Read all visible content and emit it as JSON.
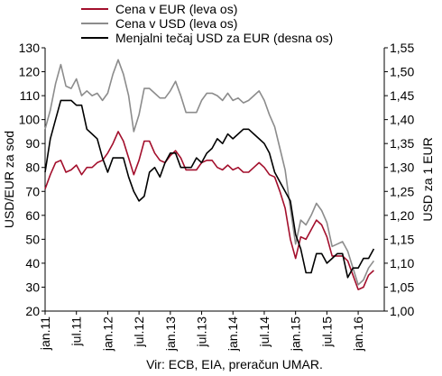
{
  "chart_data": {
    "type": "line",
    "source": "Vir: ECB, EIA, preračun UMAR.",
    "ylabel_left": "USD/EUR za sod",
    "ylabel_right": "USD za 1 EUR",
    "ylim_left": [
      20,
      130
    ],
    "yticks_left": [
      "20",
      "30",
      "40",
      "50",
      "60",
      "70",
      "80",
      "90",
      "100",
      "110",
      "120",
      "130"
    ],
    "ylim_right": [
      1.0,
      1.55
    ],
    "yticks_right": [
      "1,00",
      "1,05",
      "1,10",
      "1,15",
      "1,20",
      "1,25",
      "1,30",
      "1,35",
      "1,40",
      "1,45",
      "1,50",
      "1,55"
    ],
    "xlim": [
      "2011-01",
      "2016-06"
    ],
    "xticks": [
      "jan.11",
      "jul.11",
      "jan.12",
      "jul.12",
      "jan.13",
      "jul.13",
      "jan.14",
      "jul.14",
      "jan.15",
      "jul.15",
      "jan.16"
    ],
    "grid": false,
    "legend_position": "top",
    "colors": {
      "eur": "#a30f2c",
      "usd": "#8c8c8c",
      "fx": "#000000"
    },
    "series": [
      {
        "name": "Cena v EUR (leva os)",
        "axis": "left",
        "color": "#a30f2c",
        "points": [
          [
            "2011-01",
            71
          ],
          [
            "2011-02",
            77
          ],
          [
            "2011-03",
            82
          ],
          [
            "2011-04",
            83
          ],
          [
            "2011-05",
            78
          ],
          [
            "2011-06",
            79
          ],
          [
            "2011-07",
            81
          ],
          [
            "2011-08",
            77
          ],
          [
            "2011-09",
            80
          ],
          [
            "2011-10",
            80
          ],
          [
            "2011-11",
            82
          ],
          [
            "2011-12",
            83
          ],
          [
            "2012-01",
            86
          ],
          [
            "2012-02",
            90
          ],
          [
            "2012-03",
            95
          ],
          [
            "2012-04",
            91
          ],
          [
            "2012-05",
            84
          ],
          [
            "2012-06",
            77
          ],
          [
            "2012-07",
            83
          ],
          [
            "2012-08",
            91
          ],
          [
            "2012-09",
            91
          ],
          [
            "2012-10",
            86
          ],
          [
            "2012-11",
            83
          ],
          [
            "2012-12",
            82
          ],
          [
            "2013-01",
            85
          ],
          [
            "2013-02",
            87
          ],
          [
            "2013-03",
            84
          ],
          [
            "2013-04",
            79
          ],
          [
            "2013-05",
            79
          ],
          [
            "2013-06",
            79
          ],
          [
            "2013-07",
            82
          ],
          [
            "2013-08",
            83
          ],
          [
            "2013-09",
            83
          ],
          [
            "2013-10",
            80
          ],
          [
            "2013-11",
            79
          ],
          [
            "2013-12",
            81
          ],
          [
            "2014-01",
            79
          ],
          [
            "2014-02",
            80
          ],
          [
            "2014-03",
            78
          ],
          [
            "2014-04",
            78
          ],
          [
            "2014-05",
            80
          ],
          [
            "2014-06",
            82
          ],
          [
            "2014-07",
            80
          ],
          [
            "2014-08",
            77
          ],
          [
            "2014-09",
            76
          ],
          [
            "2014-10",
            70
          ],
          [
            "2014-11",
            63
          ],
          [
            "2014-12",
            50
          ],
          [
            "2015-01",
            42
          ],
          [
            "2015-02",
            51
          ],
          [
            "2015-03",
            50
          ],
          [
            "2015-04",
            54
          ],
          [
            "2015-05",
            58
          ],
          [
            "2015-06",
            56
          ],
          [
            "2015-07",
            51
          ],
          [
            "2015-08",
            43
          ],
          [
            "2015-09",
            43
          ],
          [
            "2015-10",
            43
          ],
          [
            "2015-11",
            41
          ],
          [
            "2015-12",
            35
          ],
          [
            "2016-01",
            29
          ],
          [
            "2016-02",
            30
          ],
          [
            "2016-03",
            35
          ],
          [
            "2016-04",
            37
          ]
        ]
      },
      {
        "name": "Cena v USD (leva os)",
        "axis": "left",
        "color": "#8c8c8c",
        "points": [
          [
            "2011-01",
            96
          ],
          [
            "2011-02",
            104
          ],
          [
            "2011-03",
            115
          ],
          [
            "2011-04",
            123
          ],
          [
            "2011-05",
            114
          ],
          [
            "2011-06",
            113
          ],
          [
            "2011-07",
            117
          ],
          [
            "2011-08",
            110
          ],
          [
            "2011-09",
            112
          ],
          [
            "2011-10",
            110
          ],
          [
            "2011-11",
            111
          ],
          [
            "2011-12",
            108
          ],
          [
            "2012-01",
            111
          ],
          [
            "2012-02",
            119
          ],
          [
            "2012-03",
            125
          ],
          [
            "2012-04",
            119
          ],
          [
            "2012-05",
            110
          ],
          [
            "2012-06",
            95
          ],
          [
            "2012-07",
            102
          ],
          [
            "2012-08",
            113
          ],
          [
            "2012-09",
            113
          ],
          [
            "2012-10",
            111
          ],
          [
            "2012-11",
            109
          ],
          [
            "2012-12",
            109
          ],
          [
            "2013-01",
            112
          ],
          [
            "2013-02",
            116
          ],
          [
            "2013-03",
            110
          ],
          [
            "2013-04",
            103
          ],
          [
            "2013-05",
            103
          ],
          [
            "2013-06",
            103
          ],
          [
            "2013-07",
            108
          ],
          [
            "2013-08",
            111
          ],
          [
            "2013-09",
            111
          ],
          [
            "2013-10",
            110
          ],
          [
            "2013-11",
            108
          ],
          [
            "2013-12",
            111
          ],
          [
            "2014-01",
            108
          ],
          [
            "2014-02",
            109
          ],
          [
            "2014-03",
            107
          ],
          [
            "2014-04",
            108
          ],
          [
            "2014-05",
            110
          ],
          [
            "2014-06",
            112
          ],
          [
            "2014-07",
            108
          ],
          [
            "2014-08",
            102
          ],
          [
            "2014-09",
            97
          ],
          [
            "2014-10",
            88
          ],
          [
            "2014-11",
            79
          ],
          [
            "2014-12",
            63
          ],
          [
            "2015-01",
            48
          ],
          [
            "2015-02",
            58
          ],
          [
            "2015-03",
            56
          ],
          [
            "2015-04",
            60
          ],
          [
            "2015-05",
            65
          ],
          [
            "2015-06",
            62
          ],
          [
            "2015-07",
            57
          ],
          [
            "2015-08",
            47
          ],
          [
            "2015-09",
            48
          ],
          [
            "2015-10",
            49
          ],
          [
            "2015-11",
            45
          ],
          [
            "2015-12",
            38
          ],
          [
            "2016-01",
            31
          ],
          [
            "2016-02",
            33
          ],
          [
            "2016-03",
            38
          ],
          [
            "2016-04",
            41
          ]
        ]
      },
      {
        "name": "Menjalni tečaj USD za EUR (desna os)",
        "axis": "right",
        "color": "#000000",
        "points": [
          [
            "2011-01",
            1.29
          ],
          [
            "2011-02",
            1.36
          ],
          [
            "2011-03",
            1.4
          ],
          [
            "2011-04",
            1.44
          ],
          [
            "2011-05",
            1.44
          ],
          [
            "2011-06",
            1.44
          ],
          [
            "2011-07",
            1.43
          ],
          [
            "2011-08",
            1.43
          ],
          [
            "2011-09",
            1.38
          ],
          [
            "2011-10",
            1.37
          ],
          [
            "2011-11",
            1.36
          ],
          [
            "2011-12",
            1.32
          ],
          [
            "2012-01",
            1.29
          ],
          [
            "2012-02",
            1.32
          ],
          [
            "2012-03",
            1.32
          ],
          [
            "2012-04",
            1.32
          ],
          [
            "2012-05",
            1.28
          ],
          [
            "2012-06",
            1.25
          ],
          [
            "2012-07",
            1.23
          ],
          [
            "2012-08",
            1.24
          ],
          [
            "2012-09",
            1.29
          ],
          [
            "2012-10",
            1.3
          ],
          [
            "2012-11",
            1.28
          ],
          [
            "2012-12",
            1.31
          ],
          [
            "2013-01",
            1.33
          ],
          [
            "2013-02",
            1.33
          ],
          [
            "2013-03",
            1.3
          ],
          [
            "2013-04",
            1.3
          ],
          [
            "2013-05",
            1.3
          ],
          [
            "2013-06",
            1.32
          ],
          [
            "2013-07",
            1.31
          ],
          [
            "2013-08",
            1.33
          ],
          [
            "2013-09",
            1.34
          ],
          [
            "2013-10",
            1.36
          ],
          [
            "2013-11",
            1.35
          ],
          [
            "2013-12",
            1.37
          ],
          [
            "2014-01",
            1.36
          ],
          [
            "2014-02",
            1.37
          ],
          [
            "2014-03",
            1.38
          ],
          [
            "2014-04",
            1.38
          ],
          [
            "2014-05",
            1.37
          ],
          [
            "2014-06",
            1.36
          ],
          [
            "2014-07",
            1.35
          ],
          [
            "2014-08",
            1.33
          ],
          [
            "2014-09",
            1.29
          ],
          [
            "2014-10",
            1.27
          ],
          [
            "2014-11",
            1.25
          ],
          [
            "2014-12",
            1.23
          ],
          [
            "2015-01",
            1.16
          ],
          [
            "2015-02",
            1.13
          ],
          [
            "2015-03",
            1.08
          ],
          [
            "2015-04",
            1.08
          ],
          [
            "2015-05",
            1.12
          ],
          [
            "2015-06",
            1.12
          ],
          [
            "2015-07",
            1.1
          ],
          [
            "2015-08",
            1.11
          ],
          [
            "2015-09",
            1.12
          ],
          [
            "2015-10",
            1.12
          ],
          [
            "2015-11",
            1.07
          ],
          [
            "2015-12",
            1.09
          ],
          [
            "2016-01",
            1.09
          ],
          [
            "2016-02",
            1.11
          ],
          [
            "2016-03",
            1.11
          ],
          [
            "2016-04",
            1.13
          ]
        ]
      }
    ]
  }
}
